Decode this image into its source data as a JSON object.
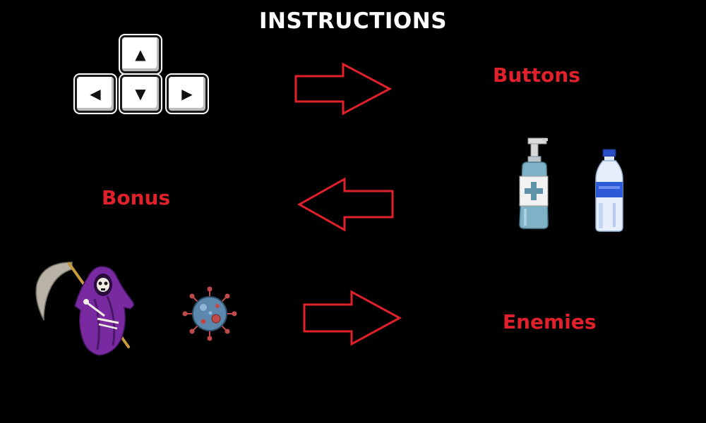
{
  "title": "INSTRUCTIONS",
  "labels": {
    "buttons": "Buttons",
    "bonus": "Bonus",
    "enemies": "Enemies"
  },
  "keys": [
    {
      "name": "up",
      "glyph": "▲"
    },
    {
      "name": "left",
      "glyph": "◀"
    },
    {
      "name": "down",
      "glyph": "▼"
    },
    {
      "name": "right",
      "glyph": "▶"
    }
  ],
  "icons": {
    "keys": "arrow-keys-icon",
    "arrow_1": "arrow-right-outline-icon",
    "arrow_2": "arrow-left-outline-icon",
    "arrow_3": "arrow-right-outline-icon",
    "bonus_1": "sanitizer-bottle-icon",
    "bonus_2": "water-bottle-icon",
    "enemy_1": "grim-reaper-icon",
    "enemy_2": "virus-icon"
  },
  "colors": {
    "background": "#000000",
    "title": "#ffffff",
    "label": "#e0202a",
    "arrow": "#e0202a"
  }
}
